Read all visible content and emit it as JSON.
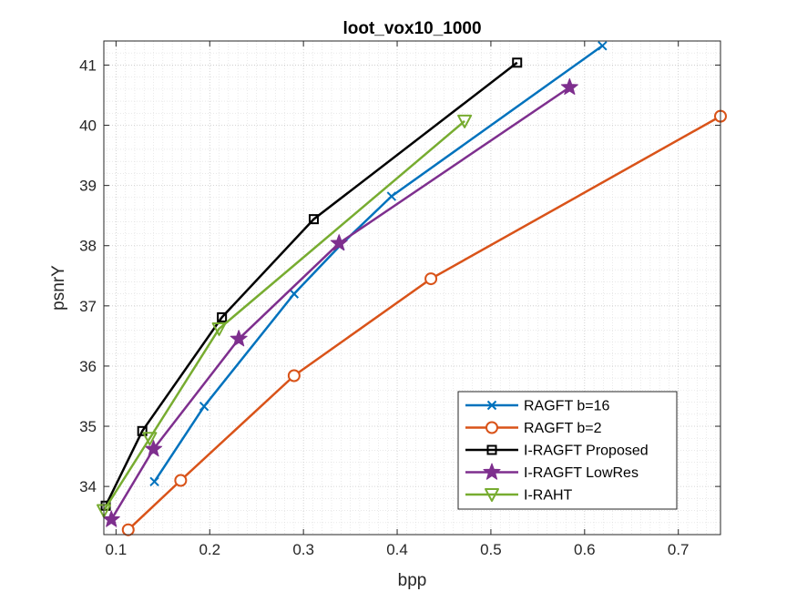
{
  "chart_data": {
    "type": "line",
    "title": "loot_vox10_1000",
    "xlabel": "bpp",
    "ylabel": "psnrY",
    "xlim": [
      0.087,
      0.745
    ],
    "ylim": [
      33.2,
      41.4
    ],
    "xticks": [
      0.1,
      0.2,
      0.3,
      0.4,
      0.5,
      0.6,
      0.7
    ],
    "xtick_labels": [
      "0.1",
      "0.2",
      "0.3",
      "0.4",
      "0.5",
      "0.6",
      "0.7"
    ],
    "yticks": [
      34,
      35,
      36,
      37,
      38,
      39,
      40,
      41
    ],
    "ytick_labels": [
      "34",
      "35",
      "36",
      "37",
      "38",
      "39",
      "40",
      "41"
    ],
    "grid": "major and minor (dotted)",
    "legend_position": "bottom-right",
    "series": [
      {
        "name": "RAGFT b=16",
        "color": "#0072BD",
        "marker": "x",
        "x": [
          0.141,
          0.194,
          0.29,
          0.339,
          0.394,
          0.619
        ],
        "y": [
          34.08,
          35.33,
          37.2,
          38.0,
          38.82,
          41.32
        ]
      },
      {
        "name": "RAGFT b=2",
        "color": "#D95319",
        "marker": "circle",
        "x": [
          0.113,
          0.169,
          0.29,
          0.436,
          0.745
        ],
        "y": [
          33.28,
          34.1,
          35.84,
          37.45,
          40.15
        ]
      },
      {
        "name": "I-RAGFT Proposed",
        "color": "#000000",
        "marker": "square",
        "x": [
          0.089,
          0.128,
          0.213,
          0.311,
          0.528
        ],
        "y": [
          33.68,
          34.92,
          36.81,
          38.44,
          41.04
        ]
      },
      {
        "name": "I-RAGFT LowRes",
        "color": "#7E2F8E",
        "marker": "star",
        "x": [
          0.095,
          0.14,
          0.231,
          0.338,
          0.584
        ],
        "y": [
          33.45,
          34.62,
          36.45,
          38.04,
          40.63
        ]
      },
      {
        "name": "I-RAHT",
        "color": "#77AC30",
        "marker": "triangle-down",
        "x": [
          0.087,
          0.136,
          0.21,
          0.472
        ],
        "y": [
          33.6,
          34.8,
          36.62,
          40.07
        ]
      }
    ]
  }
}
